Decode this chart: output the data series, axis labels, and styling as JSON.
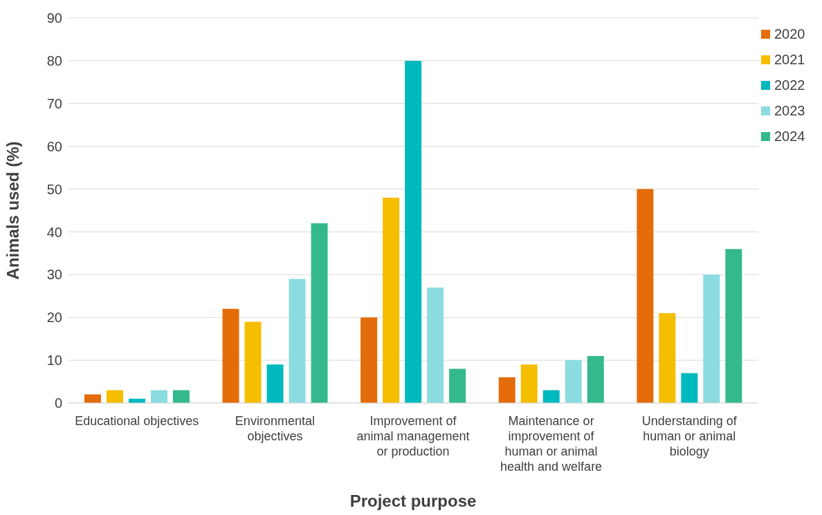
{
  "chart_data": {
    "type": "bar",
    "xlabel": "Project purpose",
    "ylabel": "Animals used (%)",
    "categories": [
      "Educational objectives",
      "Environmental objectives",
      "Improvement of animal management or production",
      "Maintenance or improvement of human or animal health and welfare",
      "Understanding of human or animal biology"
    ],
    "series": [
      {
        "name": "2020",
        "color": "#e46c0a",
        "values": [
          2,
          22,
          20,
          6,
          50
        ]
      },
      {
        "name": "2021",
        "color": "#f5be00",
        "values": [
          3,
          19,
          48,
          9,
          21
        ]
      },
      {
        "name": "2022",
        "color": "#00b9bf",
        "values": [
          1,
          9,
          80,
          3,
          7
        ]
      },
      {
        "name": "2023",
        "color": "#8adce0",
        "values": [
          3,
          29,
          27,
          10,
          30
        ]
      },
      {
        "name": "2024",
        "color": "#33b98c",
        "values": [
          3,
          42,
          8,
          11,
          36
        ]
      }
    ],
    "ylim": [
      0,
      90
    ],
    "yticks": [
      0,
      10,
      20,
      30,
      40,
      50,
      60,
      70,
      80,
      90
    ],
    "grid": "y",
    "legend": "top right"
  }
}
